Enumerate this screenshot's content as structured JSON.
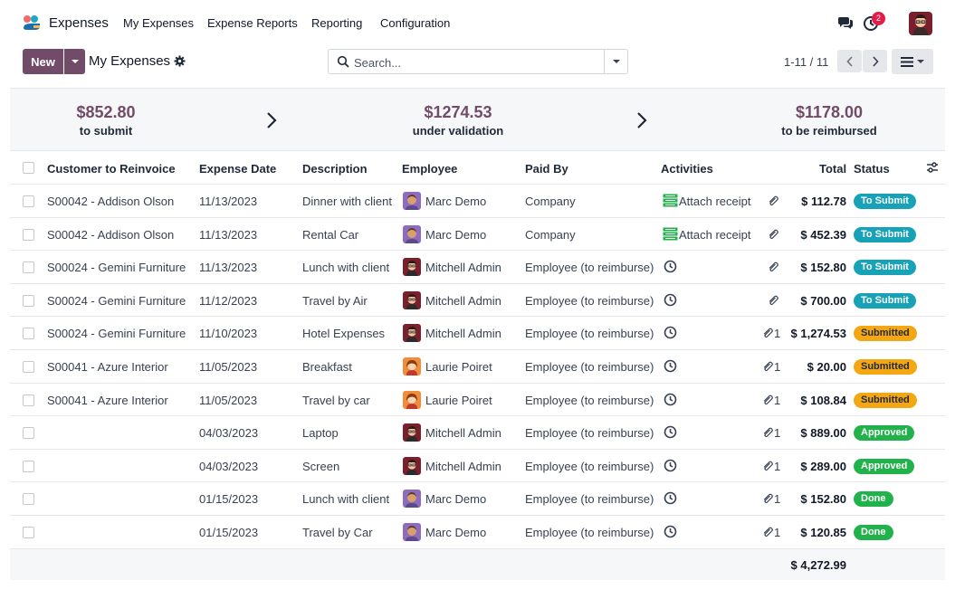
{
  "nav": {
    "app_name": "Expenses",
    "menu": [
      "My Expenses",
      "Expense Reports",
      "Reporting",
      "Configuration"
    ],
    "activity_badge": "2",
    "icons": [
      "chat-icon",
      "activity-clock-icon",
      "user-avatar"
    ]
  },
  "control": {
    "new_label": "New",
    "breadcrumb": "My Expenses",
    "search_placeholder": "Search...",
    "pager": "1-11 / 11"
  },
  "summary": [
    {
      "amount": "$852.80",
      "label": "to submit"
    },
    {
      "amount": "$1274.53",
      "label": "under validation"
    },
    {
      "amount": "$1178.00",
      "label": "to be reimbursed"
    }
  ],
  "table": {
    "columns": [
      "Customer to Reinvoice",
      "Expense Date",
      "Description",
      "Employee",
      "Paid By",
      "Activities",
      "Total",
      "Status"
    ],
    "rows": [
      {
        "customer": "S00042 - Addison Olson",
        "date": "11/13/2023",
        "description": "Dinner with client",
        "employee": "Marc Demo",
        "avatar": "marc",
        "paid_by": "Company",
        "activity": "Attach receipt",
        "attachments": "",
        "total": "$ 112.78",
        "status": "To Submit"
      },
      {
        "customer": "S00042 - Addison Olson",
        "date": "11/13/2023",
        "description": "Rental Car",
        "employee": "Marc Demo",
        "avatar": "marc",
        "paid_by": "Company",
        "activity": "Attach receipt",
        "attachments": "",
        "total": "$ 452.39",
        "status": "To Submit"
      },
      {
        "customer": "S00024 - Gemini Furniture",
        "date": "11/13/2023",
        "description": "Lunch with client",
        "employee": "Mitchell Admin",
        "avatar": "mitchell",
        "paid_by": "Employee (to reimburse)",
        "activity": "",
        "attachments": "",
        "total": "$ 152.80",
        "status": "To Submit"
      },
      {
        "customer": "S00024 - Gemini Furniture",
        "date": "11/12/2023",
        "description": "Travel by Air",
        "employee": "Mitchell Admin",
        "avatar": "mitchell",
        "paid_by": "Employee (to reimburse)",
        "activity": "",
        "attachments": "",
        "total": "$ 700.00",
        "status": "To Submit"
      },
      {
        "customer": "S00024 - Gemini Furniture",
        "date": "11/10/2023",
        "description": "Hotel Expenses",
        "employee": "Mitchell Admin",
        "avatar": "mitchell",
        "paid_by": "Employee (to reimburse)",
        "activity": "",
        "attachments": "1",
        "total": "$ 1,274.53",
        "status": "Submitted"
      },
      {
        "customer": "S00041 - Azure Interior",
        "date": "11/05/2023",
        "description": "Breakfast",
        "employee": "Laurie Poiret",
        "avatar": "laurie",
        "paid_by": "Employee (to reimburse)",
        "activity": "",
        "attachments": "1",
        "total": "$ 20.00",
        "status": "Submitted"
      },
      {
        "customer": "S00041 - Azure Interior",
        "date": "11/05/2023",
        "description": "Travel by car",
        "employee": "Laurie Poiret",
        "avatar": "laurie",
        "paid_by": "Employee (to reimburse)",
        "activity": "",
        "attachments": "1",
        "total": "$ 108.84",
        "status": "Submitted"
      },
      {
        "customer": "",
        "date": "04/03/2023",
        "description": "Laptop",
        "employee": "Mitchell Admin",
        "avatar": "mitchell",
        "paid_by": "Employee (to reimburse)",
        "activity": "",
        "attachments": "1",
        "total": "$ 889.00",
        "status": "Approved"
      },
      {
        "customer": "",
        "date": "04/03/2023",
        "description": "Screen",
        "employee": "Mitchell Admin",
        "avatar": "mitchell",
        "paid_by": "Employee (to reimburse)",
        "activity": "",
        "attachments": "1",
        "total": "$ 289.00",
        "status": "Approved"
      },
      {
        "customer": "",
        "date": "01/15/2023",
        "description": "Lunch with client",
        "employee": "Marc Demo",
        "avatar": "marc",
        "paid_by": "Employee (to reimburse)",
        "activity": "",
        "attachments": "1",
        "total": "$ 152.80",
        "status": "Done"
      },
      {
        "customer": "",
        "date": "01/15/2023",
        "description": "Travel by Car",
        "employee": "Marc Demo",
        "avatar": "marc",
        "paid_by": "Employee (to reimburse)",
        "activity": "",
        "attachments": "1",
        "total": "$ 120.85",
        "status": "Done"
      }
    ],
    "grand_total": "$ 4,272.99"
  },
  "colors": {
    "brand": "#714b67",
    "to_submit": "#17a2b8",
    "submitted": "#f3a712",
    "approved": "#22b24c",
    "done": "#22b24c"
  }
}
